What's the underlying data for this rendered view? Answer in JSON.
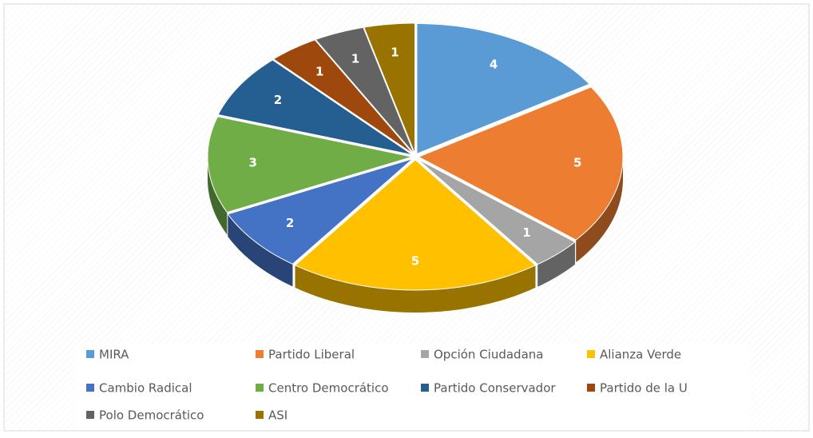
{
  "chart_data": {
    "type": "pie",
    "categories": [
      "MIRA",
      "Partido Liberal",
      "Opción Ciudadana",
      "Alianza Verde",
      "Cambio Radical",
      "Centro Democrático",
      "Partido Conservador",
      "Partido de la U",
      "Polo Democrático",
      "ASI"
    ],
    "values": [
      4,
      5,
      1,
      5,
      2,
      3,
      2,
      1,
      1,
      1
    ],
    "colors": [
      "#5b9bd5",
      "#ed7d31",
      "#a5a5a5",
      "#ffc000",
      "#4472c4",
      "#70ad47",
      "#255e91",
      "#9e480e",
      "#636363",
      "#997300"
    ],
    "legend": "bottom"
  }
}
